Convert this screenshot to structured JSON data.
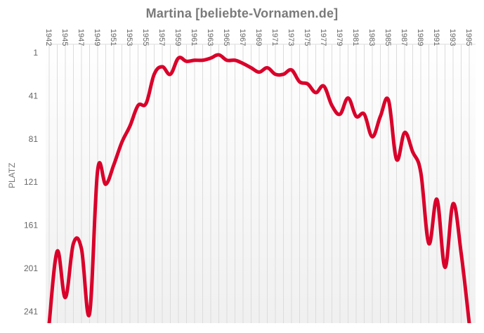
{
  "title": "Martina [beliebte-Vornamen.de]",
  "colors": {
    "line": "#d9002a",
    "grid": "#dcdcdc",
    "text": "#666666",
    "title": "#7a7a7a",
    "bg_top": "#ffffff",
    "bg_bottom": "#f0f0f0"
  },
  "chart_data": {
    "type": "line",
    "title": "Martina [beliebte-Vornamen.de]",
    "xlabel": "",
    "ylabel": "PLATZ",
    "y_inverted": true,
    "ylim": [
      1,
      250
    ],
    "y_ticks": [
      1,
      41,
      81,
      121,
      161,
      201,
      241
    ],
    "x_tick_labels": [
      "1942",
      "1945",
      "1947",
      "1949",
      "1951",
      "1953",
      "1955",
      "1957",
      "1959",
      "1961",
      "1963",
      "1965",
      "1967",
      "1969",
      "1971",
      "1973",
      "1975",
      "1977",
      "1979",
      "1981",
      "1983",
      "1985",
      "1987",
      "1989",
      "1991",
      "1993",
      "1995"
    ],
    "grid": true,
    "legend": "none",
    "x": [
      "1942",
      "1944",
      "1945",
      "1946",
      "1947",
      "1948",
      "1949",
      "1950",
      "1951",
      "1952",
      "1953",
      "1954",
      "1955",
      "1956",
      "1957",
      "1958",
      "1959",
      "1960",
      "1961",
      "1962",
      "1963",
      "1964",
      "1965",
      "1966",
      "1967",
      "1968",
      "1969",
      "1970",
      "1971",
      "1972",
      "1973",
      "1974",
      "1975",
      "1976",
      "1977",
      "1978",
      "1979",
      "1980",
      "1981",
      "1982",
      "1983",
      "1984",
      "1985",
      "1986",
      "1987",
      "1988",
      "1989",
      "1990",
      "1991",
      "1992",
      "1993",
      "1994",
      "1995"
    ],
    "series": [
      {
        "name": "Martina",
        "values": [
          252,
          185,
          228,
          178,
          183,
          243,
          110,
          123,
          105,
          84,
          69,
          50,
          48,
          21,
          14,
          21,
          6,
          9,
          8,
          8,
          6,
          3,
          8,
          8,
          11,
          15,
          19,
          15,
          21,
          21,
          17,
          28,
          30,
          38,
          32,
          50,
          58,
          43,
          60,
          58,
          79,
          60,
          45,
          100,
          75,
          93,
          112,
          178,
          137,
          200,
          141,
          187,
          252
        ]
      }
    ]
  }
}
